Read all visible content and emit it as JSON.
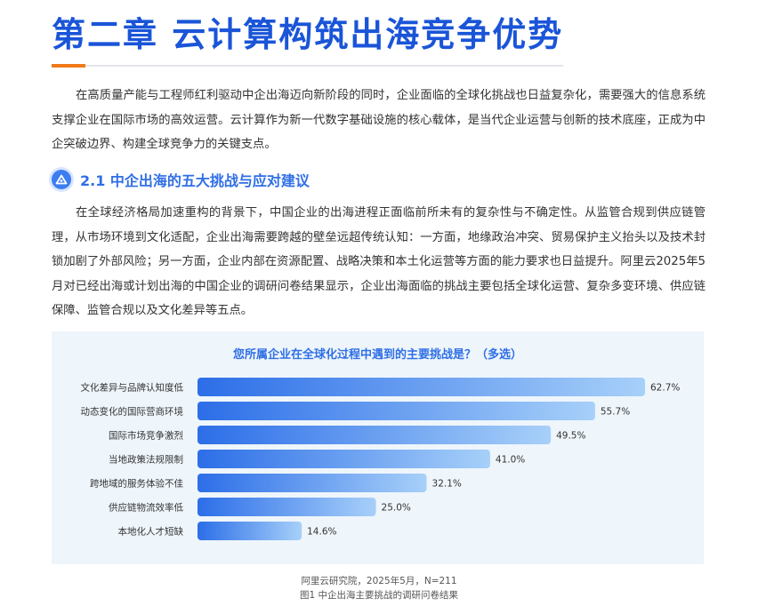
{
  "chapter_title": "第二章 云计算构筑出海竞争优势",
  "intro_paragraph": "在高质量产能与工程师红利驱动中企出海迈向新阶段的同时，企业面临的全球化挑战也日益复杂化，需要强大的信息系统支撑企业在国际市场的高效运营。云计算作为新一代数字基础设施的核心载体，是当代企业运营与创新的技术底座，正成为中企突破边界、构建全球竞争力的关键支点。",
  "section": {
    "icon": "mountain-icon",
    "title": "2.1 中企出海的五大挑战与应对建议"
  },
  "section_paragraph": "在全球经济格局加速重构的背景下，中国企业的出海进程正面临前所未有的复杂性与不确定性。从监管合规到供应链管理，从市场环境到文化适配，企业出海需要跨越的壁垒远超传统认知：一方面，地缘政治冲突、贸易保护主义抬头以及技术封锁加剧了外部风险；另一方面，企业内部在资源配置、战略决策和本土化运营等方面的能力要求也日益提升。阿里云2025年5月对已经出海或计划出海的中国企业的调研问卷结果显示，企业出海面临的挑战主要包括全球化运营、复杂多变环境、供应链保障、监管合规以及文化差异等五点。",
  "colors": {
    "title_blue": "#1a55d8",
    "accent_orange": "#f07a1a",
    "bar_start": "#2c6ee8",
    "bar_end": "#a7d0f9",
    "panel_bg": "#eef5fb"
  },
  "chart_data": {
    "type": "bar",
    "orientation": "horizontal",
    "title": "您所属企业在全球化过程中遇到的主要挑战是？（多选）",
    "categories": [
      "文化差异与品牌认知度低",
      "动态变化的国际营商环境",
      "国际市场竞争激烈",
      "当地政策法规限制",
      "跨地域的服务体验不佳",
      "供应链物流效率低",
      "本地化人才短缺"
    ],
    "values": [
      62.7,
      55.7,
      49.5,
      41.0,
      32.1,
      25.0,
      14.6
    ],
    "value_labels": [
      "62.7%",
      "55.7%",
      "49.5%",
      "41.0%",
      "32.1%",
      "25.0%",
      "14.6%"
    ],
    "unit": "%",
    "xlim": [
      0,
      62.7
    ],
    "grid": false,
    "legend": "none"
  },
  "source_line": "阿里云研究院，2025年5月，N=211",
  "figure_caption": "图1 中企出海主要挑战的调研问卷结果"
}
